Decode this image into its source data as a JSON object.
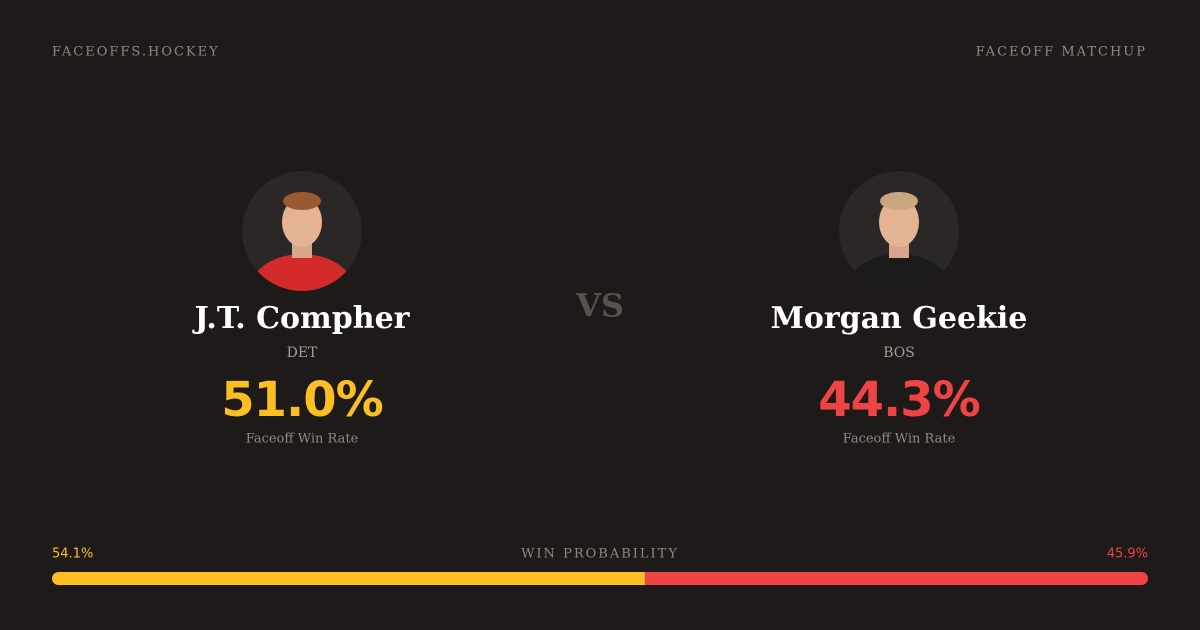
{
  "header": {
    "brand": "FACEOFFS.HOCKEY",
    "label": "FACEOFF MATCHUP"
  },
  "vs": "VS",
  "players": [
    {
      "name": "J.T. Compher",
      "team": "DET",
      "rate": "51.0%",
      "rate_label": "Faceoff Win Rate",
      "color": "#fbbf24",
      "jersey": "#d42a2a"
    },
    {
      "name": "Morgan Geekie",
      "team": "BOS",
      "rate": "44.3%",
      "rate_label": "Faceoff Win Rate",
      "color": "#ef4444",
      "jersey": "#1a1a1a"
    }
  ],
  "win_probability": {
    "label": "WIN PROBABILITY",
    "values": [
      54.1,
      45.9
    ],
    "value_labels": [
      "54.1%",
      "45.9%"
    ],
    "colors": [
      "#fbbf24",
      "#ef4444"
    ]
  }
}
